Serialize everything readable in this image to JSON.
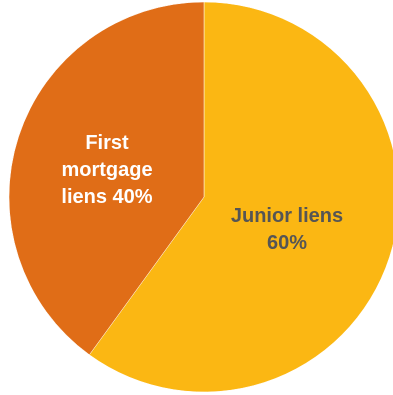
{
  "chart_data": {
    "type": "pie",
    "slices": [
      {
        "label_lines": [
          "Junior liens",
          "60%"
        ],
        "value": 60,
        "color": "#FBB713",
        "label_color": "#555555"
      },
      {
        "label_lines": [
          "First",
          "mortgage",
          "liens 40%"
        ],
        "value": 40,
        "color": "#E06D17",
        "label_color": "#FFFFFF"
      }
    ],
    "start_angle": "12 o'clock",
    "direction": "clockwise"
  }
}
